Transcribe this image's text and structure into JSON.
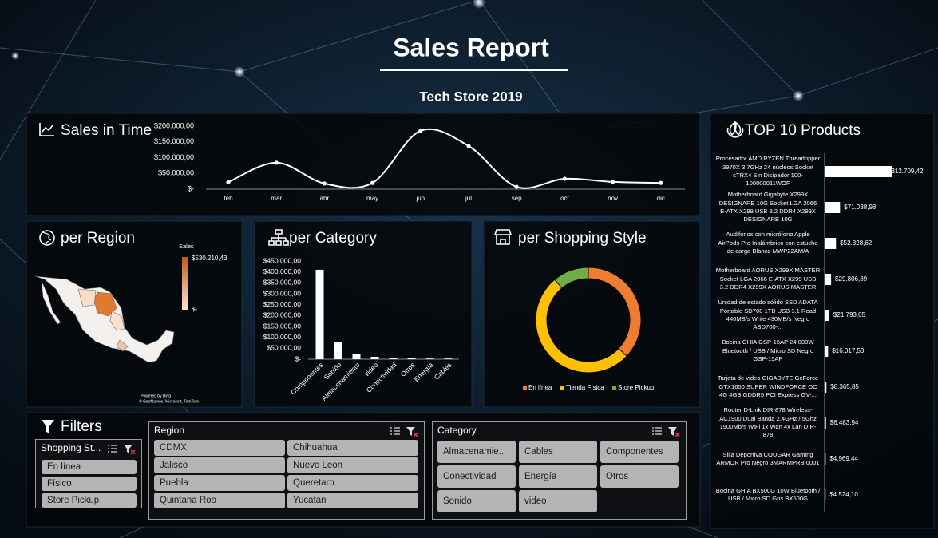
{
  "header": {
    "title": "Sales Report",
    "subtitle": "Tech Store 2019"
  },
  "chart_data": [
    {
      "type": "line",
      "title": "Sales in Time",
      "color": "#ffffff",
      "categories": [
        "feb",
        "mar",
        "abr",
        "may",
        "jun",
        "jul",
        "sep",
        "oct",
        "nov",
        "dic"
      ],
      "values": [
        22000,
        84000,
        18000,
        20000,
        185000,
        137000,
        7500,
        33000,
        23000,
        20000
      ],
      "ylim": [
        0,
        200000
      ],
      "yticks": [
        {
          "value": 0,
          "label": "$-"
        },
        {
          "value": 50000,
          "label": "$50.000,00"
        },
        {
          "value": 100000,
          "label": "$100.000,00"
        },
        {
          "value": 150000,
          "label": "$150.000,00"
        },
        {
          "value": 200000,
          "label": "$200.000,00"
        }
      ]
    },
    {
      "type": "choropleth",
      "title": "per Region",
      "colorbar": {
        "title": "Sales",
        "colors": [
          "#fbe5d6",
          "#c55a11"
        ],
        "ticks": [
          {
            "value": 0,
            "label": "$-"
          },
          {
            "value": 530210.43,
            "label": "$530.210,43"
          }
        ]
      },
      "attribution": [
        "Powered by Bing",
        "© GeoNames, Microsoft, TomTom"
      ]
    },
    {
      "type": "bar",
      "title": "per Category",
      "color": "#ffffff",
      "categories": [
        "Componentes",
        "Sonido",
        "Almacenamiento",
        "video",
        "Conectividad",
        "Otros",
        "Energía",
        "Cables"
      ],
      "values": [
        410000,
        77000,
        22000,
        11000,
        4000,
        4000,
        3000,
        3000
      ],
      "ylim": [
        0,
        450000
      ],
      "yticks": [
        {
          "value": 0,
          "label": "$-"
        },
        {
          "value": 50000,
          "label": "$50.000,00"
        },
        {
          "value": 100000,
          "label": "$100.000,00"
        },
        {
          "value": 150000,
          "label": "$150.000,00"
        },
        {
          "value": 200000,
          "label": "$200.000,00"
        },
        {
          "value": 250000,
          "label": "$250.000,00"
        },
        {
          "value": 300000,
          "label": "$300.000,00"
        },
        {
          "value": 350000,
          "label": "$350.000,00"
        },
        {
          "value": 400000,
          "label": "$400.000,00"
        },
        {
          "value": 450000,
          "label": "$450.000,00"
        }
      ]
    },
    {
      "type": "doughnut",
      "title": "per Shopping Style",
      "categories": [
        "En línea",
        "Tienda Física",
        "Store Pickup"
      ],
      "values": [
        37,
        52,
        11
      ],
      "colors": [
        "#ed7d31",
        "#ffc000",
        "#70ad47"
      ]
    },
    {
      "type": "barh",
      "title": "TOP 10 Products",
      "color": "#ffffff",
      "categories": [
        "Procesador AMD RYZEN Threadripper 3970X 3.7GHz 24 núcleos Socket sTRX4 Sin Disipador 100-100000011WOF",
        "Motherboard Gigabyte X299X DESIGNARE 10G Socket LGA 2066 E-ATX X299 USB 3.2 DDR4 X299X DESIGNARE 10G",
        "Audífonos con micrófono Apple AirPods Pro Inalámbrico con estuche de carga Blanco MWP22AM/A",
        "Motherboard AORUS X299X MASTER Socket LGA 2066 E-ATX X299 USB 3.2 DDR4 X299X AORUS MASTER",
        "Unidad de estado sólido SSD ADATA Portable SD700 1TB USB 3.1 Read 440MB/s Write 430MB/s Negro ASD700-...",
        "Bocina GHIA GSP-15AP 24,000W Bluetooth / USB / Micro SD Negro GSP-15AP",
        "Tarjeta de video GIGABYTE GeForce GTX1650 SUPER WINDFORCE OC 4G 4GB GDDR5 PCI Express GV-...",
        "Router D-Link DIR-878 Wireless-AC1900 Dual Banda 2.4GHz / 5Ghz 1900Mb/s WiFi 1x Wan 4x Lan DIR-878",
        "Silla Deportiva COUGAR Gaming ARMOR Pro Negro 3MARMPRB.0001",
        "Bocina GHIA BX500G 10W Bluetooth / USB / Micro SD Gris BX500G"
      ],
      "values": [
        312709.42,
        71038.98,
        52328.62,
        29806.89,
        21793.05,
        16017.53,
        8365.85,
        6483.94,
        4969.44,
        4524.1
      ],
      "value_labels": [
        "$312.709,42",
        "$71.038,98",
        "$52.328,62",
        "$29.806,89",
        "$21.793,05",
        "$16.017,53",
        "$8.365,85",
        "$6.483,94",
        "$4.969,44",
        "$4.524,10"
      ]
    }
  ],
  "filters": {
    "title": "Filters",
    "slicers": [
      {
        "title": "Shopping St...",
        "items": [
          "En línea",
          "Físico",
          "Store Pickup"
        ]
      },
      {
        "title": "Region",
        "items": [
          "CDMX",
          "Chihuahua",
          "Jalisco",
          "Nuevo Leon",
          "Puebla",
          "Queretaro",
          "Quintana Roo",
          "Yucatan"
        ]
      },
      {
        "title": "Category",
        "items": [
          "Almacenamie...",
          "Cables",
          "Componentes",
          "Conectividad",
          "Energía",
          "Otros",
          "Sonido",
          "video"
        ]
      }
    ]
  }
}
